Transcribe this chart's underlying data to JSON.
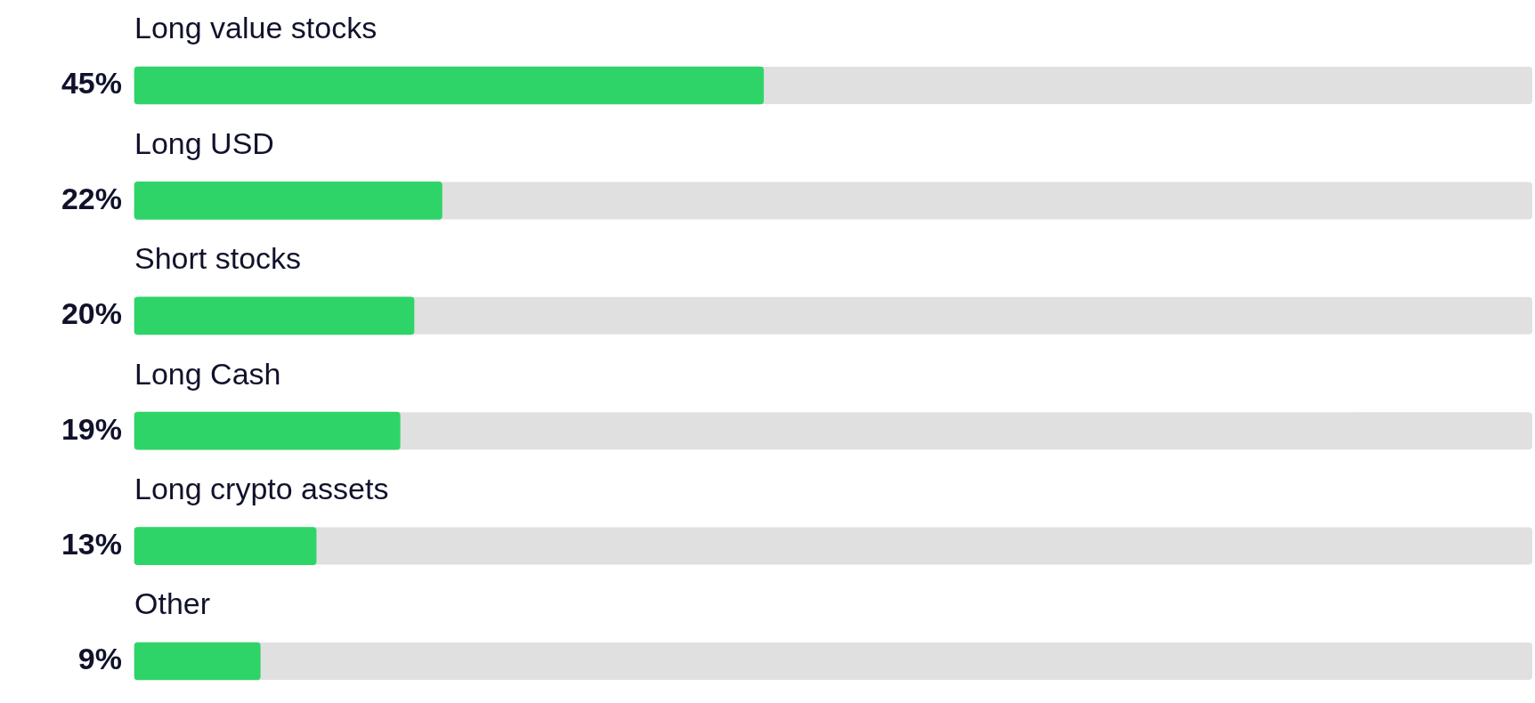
{
  "chart_data": {
    "type": "bar",
    "orientation": "horizontal",
    "categories": [
      "Long value stocks",
      "Long USD",
      "Short stocks",
      "Long Cash",
      "Long crypto assets",
      "Other"
    ],
    "values": [
      45,
      22,
      20,
      19,
      13,
      9
    ],
    "value_labels": [
      "45%",
      "22%",
      "20%",
      "19%",
      "13%",
      "9%"
    ],
    "color": "#2fd468",
    "xlim": [
      0,
      100
    ],
    "tick_labels": false,
    "grid": false,
    "legend": false
  }
}
